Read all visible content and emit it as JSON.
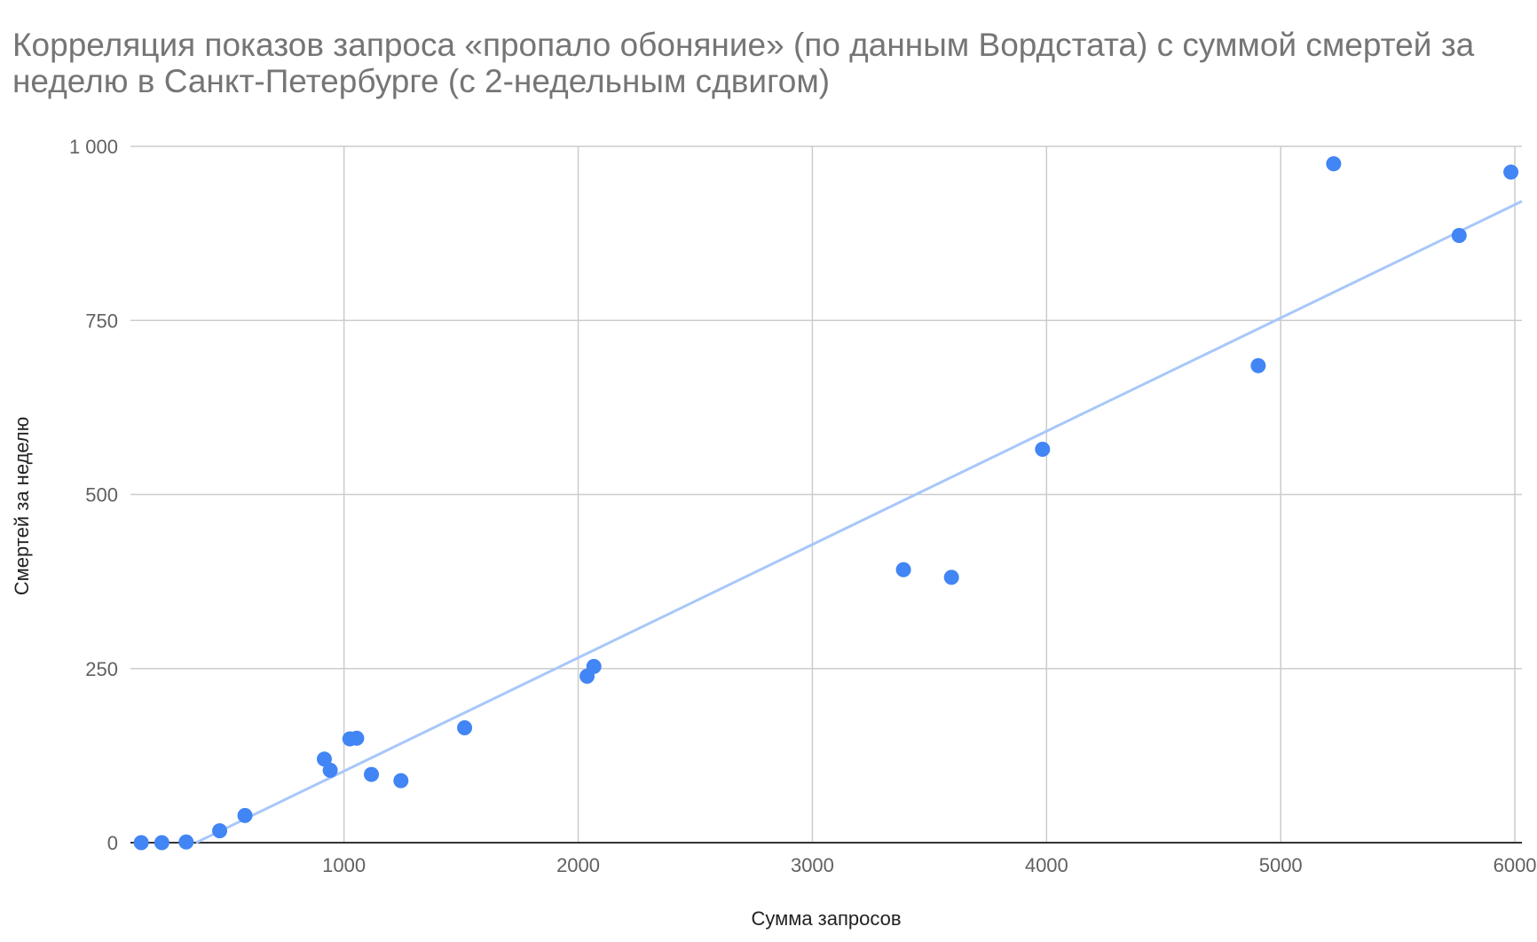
{
  "chart_data": {
    "type": "scatter",
    "title": "Корреляция показов запроса «пропало обоняние» (по данным Вордстата) с суммой смертей за неделю в Санкт-Петербурге (с 2-недельным сдвигом)",
    "xlabel": "Сумма запросов",
    "ylabel": "Смертей за неделю",
    "xlim": [
      88,
      6030
    ],
    "ylim": [
      0,
      1000
    ],
    "xticks": [
      1000,
      2000,
      3000,
      4000,
      5000,
      6000
    ],
    "xtick_labels": [
      "1000",
      "2000",
      "3000",
      "4000",
      "5000",
      "6000"
    ],
    "yticks": [
      0,
      250,
      500,
      750,
      1000
    ],
    "ytick_labels": [
      "0",
      "250",
      "500",
      "750",
      "1 000"
    ],
    "grid": true,
    "point_color": "#4285f4",
    "trendline_color": "#a8c7fa",
    "points": [
      [
        134,
        0
      ],
      [
        222,
        0
      ],
      [
        326,
        1
      ],
      [
        469,
        17
      ],
      [
        577,
        39
      ],
      [
        916,
        120
      ],
      [
        941,
        104
      ],
      [
        1025,
        149
      ],
      [
        1054,
        150
      ],
      [
        1117,
        98
      ],
      [
        1243,
        89
      ],
      [
        1515,
        165
      ],
      [
        2038,
        239
      ],
      [
        2067,
        253
      ],
      [
        3389,
        392
      ],
      [
        3594,
        381
      ],
      [
        3983,
        565
      ],
      [
        4904,
        685
      ],
      [
        5226,
        975
      ],
      [
        5762,
        872
      ],
      [
        5983,
        963
      ]
    ],
    "trendline": {
      "type": "linear",
      "slope": 0.1627,
      "intercept": -59.9
    }
  }
}
